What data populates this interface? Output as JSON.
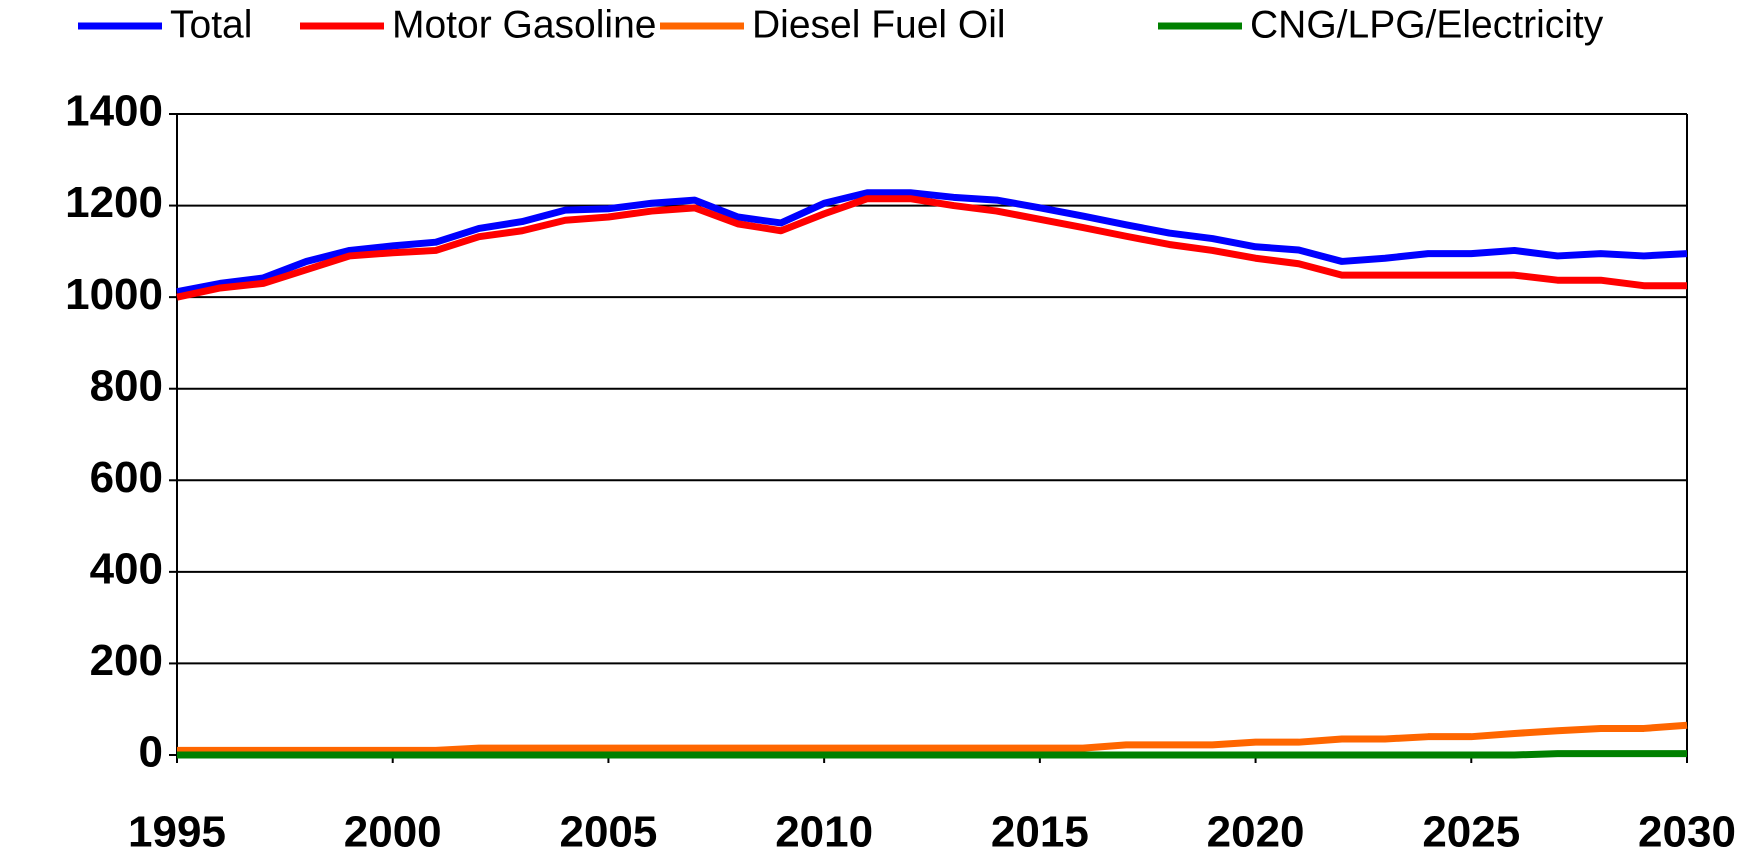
{
  "chart_data": {
    "type": "line",
    "x": [
      1995,
      1996,
      1997,
      1998,
      1999,
      2000,
      2001,
      2002,
      2003,
      2004,
      2005,
      2006,
      2007,
      2008,
      2009,
      2010,
      2011,
      2012,
      2013,
      2014,
      2015,
      2016,
      2017,
      2018,
      2019,
      2020,
      2021,
      2022,
      2023,
      2024,
      2025,
      2026,
      2027,
      2028,
      2029,
      2030
    ],
    "series": [
      {
        "name": "Total",
        "color": "#0000ff",
        "values": [
          1012,
          1030,
          1042,
          1078,
          1102,
          1112,
          1120,
          1150,
          1165,
          1190,
          1193,
          1205,
          1212,
          1175,
          1162,
          1205,
          1228,
          1228,
          1218,
          1212,
          1195,
          1177,
          1158,
          1140,
          1128,
          1110,
          1103,
          1078,
          1085,
          1095,
          1095,
          1102,
          1090,
          1095,
          1090,
          1095
        ]
      },
      {
        "name": "Motor Gasoline",
        "color": "#ff0000",
        "values": [
          1000,
          1020,
          1030,
          1060,
          1090,
          1097,
          1102,
          1132,
          1145,
          1168,
          1175,
          1188,
          1195,
          1160,
          1145,
          1182,
          1215,
          1215,
          1200,
          1188,
          1170,
          1152,
          1133,
          1115,
          1102,
          1085,
          1073,
          1048,
          1048,
          1048,
          1048,
          1048,
          1037,
          1037,
          1025,
          1025
        ]
      },
      {
        "name": "Diesel Fuel Oil",
        "color": "#ff6600",
        "values": [
          10,
          10,
          10,
          10,
          10,
          10,
          10,
          15,
          15,
          15,
          15,
          15,
          15,
          15,
          15,
          15,
          15,
          15,
          15,
          15,
          15,
          15,
          22,
          22,
          22,
          28,
          28,
          35,
          35,
          40,
          40,
          47,
          53,
          58,
          58,
          65
        ]
      },
      {
        "name": "CNG/LPG/Electricity",
        "color": "#008000",
        "values": [
          0,
          0,
          0,
          0,
          0,
          0,
          0,
          0,
          0,
          0,
          0,
          0,
          0,
          0,
          0,
          0,
          0,
          0,
          0,
          0,
          0,
          0,
          0,
          0,
          0,
          0,
          0,
          0,
          0,
          0,
          0,
          0,
          3,
          3,
          3,
          3
        ]
      }
    ],
    "xlim": [
      1995,
      2030
    ],
    "xticks": [
      1995,
      2000,
      2005,
      2010,
      2015,
      2020,
      2025,
      2030
    ],
    "ylim": [
      0,
      1400
    ],
    "yticks": [
      0,
      200,
      400,
      600,
      800,
      1000,
      1200,
      1400
    ],
    "grid": true,
    "legend": "top"
  }
}
